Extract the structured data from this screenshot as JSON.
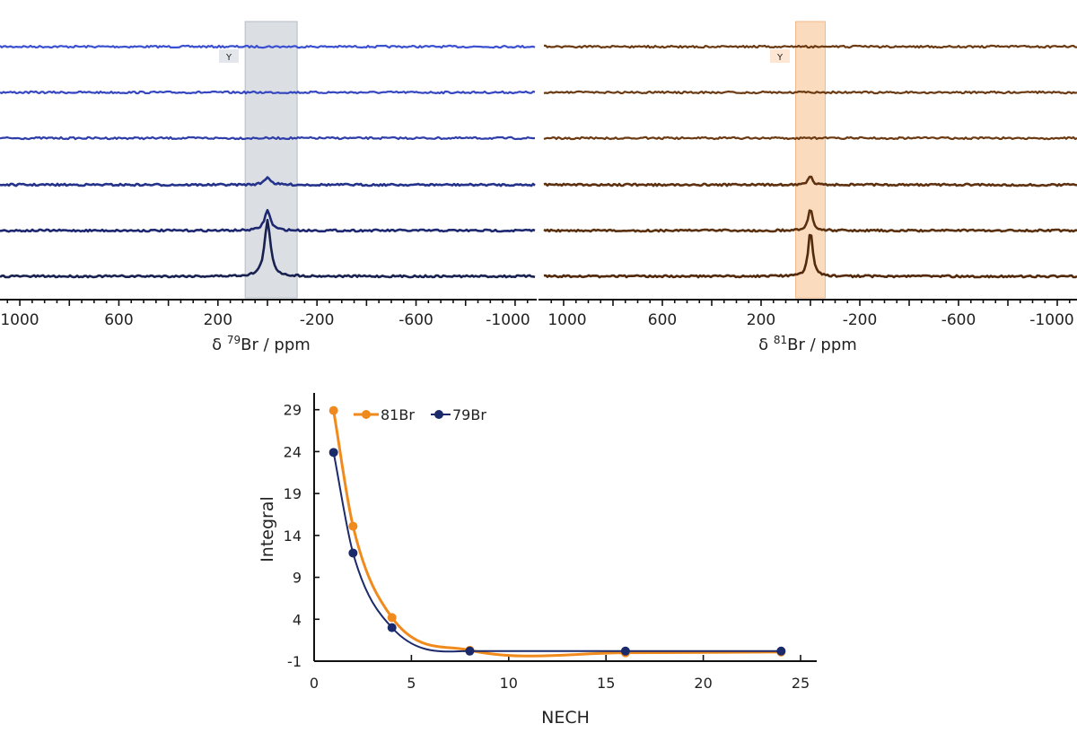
{
  "chart_data": [
    {
      "type": "line",
      "panel": "79Br spectra",
      "xlabel_prefix": "δ ",
      "xlabel_sup": "79",
      "xlabel_suffix": "Br / ppm",
      "xlim": [
        1080,
        -1080
      ],
      "x_ticks": [
        "1000",
        "600",
        "200",
        "-200",
        "-600",
        "-1000"
      ],
      "x_tick_values": [
        1000,
        600,
        200,
        -200,
        -600,
        -1000
      ],
      "highlight_range": [
        90,
        -120
      ],
      "highlight_color": "#c8ced6",
      "marker_label": "Y",
      "peak_position": 0,
      "series": [
        {
          "name": "trace-1",
          "peak_height": 0,
          "color": "#3b4fd1"
        },
        {
          "name": "trace-2",
          "peak_height": 0,
          "color": "#3446c0"
        },
        {
          "name": "trace-3",
          "peak_height": 0,
          "color": "#2e3da8"
        },
        {
          "name": "trace-4",
          "peak_height": 0.14,
          "color": "#24328a"
        },
        {
          "name": "trace-5",
          "peak_height": 0.36,
          "color": "#1d2870"
        },
        {
          "name": "trace-6",
          "peak_height": 1.0,
          "color": "#18214f"
        }
      ]
    },
    {
      "type": "line",
      "panel": "81Br spectra",
      "xlabel_prefix": "δ ",
      "xlabel_sup": "81",
      "xlabel_suffix": "Br / ppm",
      "xlim": [
        1080,
        -1080
      ],
      "x_ticks": [
        "1000",
        "600",
        "200",
        "-200",
        "-600",
        "-1000"
      ],
      "x_tick_values": [
        1000,
        600,
        200,
        -200,
        -600,
        -1000
      ],
      "highlight_range": [
        60,
        -60
      ],
      "highlight_color": "#f8cfa8",
      "marker_label": "Y",
      "peak_position": 0,
      "series": [
        {
          "name": "trace-1",
          "peak_height": 0,
          "color": "#6b3a12"
        },
        {
          "name": "trace-2",
          "peak_height": 0,
          "color": "#6b3a12"
        },
        {
          "name": "trace-3",
          "peak_height": 0,
          "color": "#6b3a12"
        },
        {
          "name": "trace-4",
          "peak_height": 0.18,
          "color": "#5e3210"
        },
        {
          "name": "trace-5",
          "peak_height": 0.5,
          "color": "#5a300e"
        },
        {
          "name": "trace-6",
          "peak_height": 1.0,
          "color": "#52290a"
        }
      ]
    },
    {
      "type": "line",
      "panel": "integral vs NECH",
      "xlabel": "NECH",
      "ylabel": "Integral",
      "xlim": [
        0,
        25
      ],
      "ylim": [
        -1,
        31
      ],
      "x_ticks": [
        0,
        5,
        10,
        15,
        20,
        25
      ],
      "y_ticks": [
        -1,
        4,
        9,
        14,
        19,
        24,
        29
      ],
      "legend_position": "top-left",
      "series": [
        {
          "name": "81Br",
          "color": "#f08a1c",
          "x": [
            1,
            2,
            4,
            8,
            16,
            24
          ],
          "y": [
            28.9,
            15.1,
            4.2,
            0.3,
            0.0,
            0.1
          ]
        },
        {
          "name": "79Br",
          "color": "#1b2a6b",
          "x": [
            1,
            2,
            4,
            8,
            16,
            24
          ],
          "y": [
            23.9,
            11.9,
            3.0,
            0.2,
            0.2,
            0.2
          ]
        }
      ]
    }
  ]
}
